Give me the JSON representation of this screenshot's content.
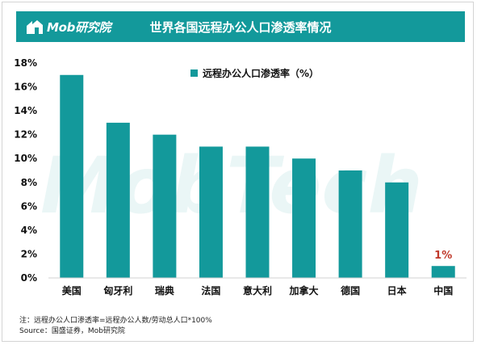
{
  "brand": {
    "logo_text": "Mob研究院",
    "accent": "#13999b"
  },
  "header": {
    "title": "世界各国远程办公人口渗透率情况"
  },
  "watermark": {
    "text": "MobTech"
  },
  "chart_data": {
    "type": "bar",
    "legend": {
      "label": "远程办公人口渗透率（%）",
      "position": "top-center"
    },
    "categories": [
      "美国",
      "匈牙利",
      "瑞典",
      "法国",
      "意大利",
      "加拿大",
      "德国",
      "日本",
      "中国"
    ],
    "values": [
      17,
      13,
      12,
      11,
      11,
      10,
      9,
      8,
      1
    ],
    "bar_color": "#13999b",
    "highlight": {
      "category": "中国",
      "label": "1%",
      "color": "#c0392b"
    },
    "ylim": [
      0,
      18
    ],
    "y_ticks": [
      "0%",
      "2%",
      "4%",
      "6%",
      "8%",
      "10%",
      "12%",
      "14%",
      "16%",
      "18%"
    ],
    "grid": false
  },
  "footnotes": {
    "note": "注：远程办公人口渗透率=远程办公人数/劳动总人口*100%",
    "source": "Source：国盛证券，Mob研究院"
  }
}
